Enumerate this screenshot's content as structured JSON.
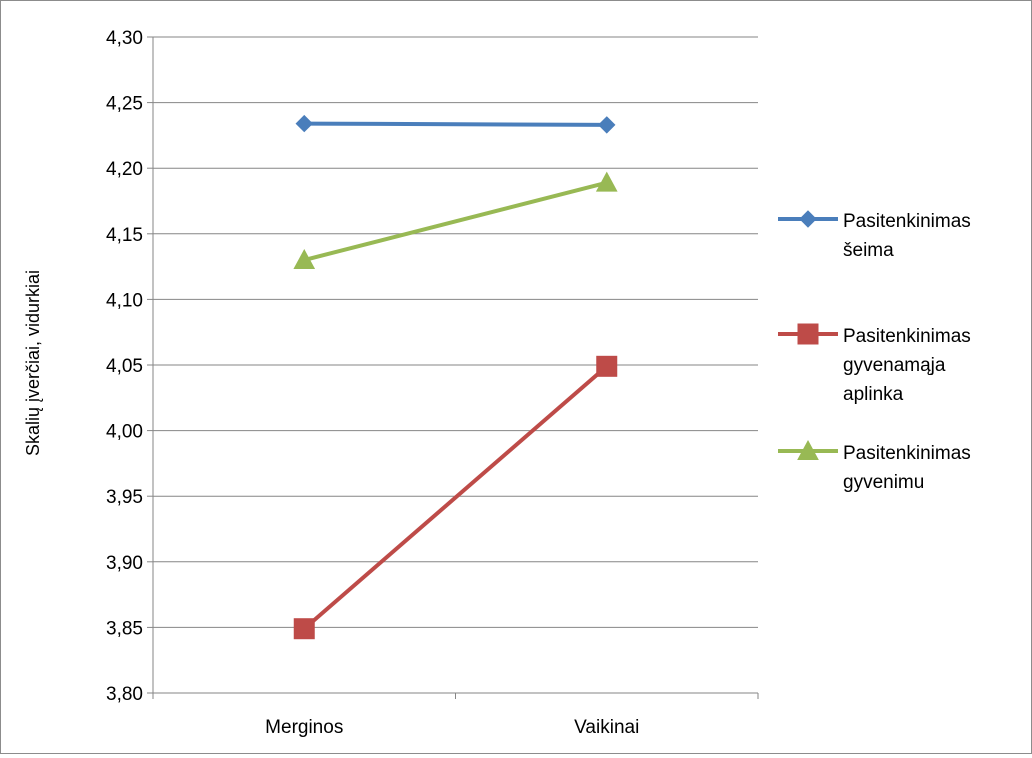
{
  "chart_data": {
    "type": "line",
    "categories": [
      "Merginos",
      "Vaikinai"
    ],
    "series": [
      {
        "name": "Pasitenkinimas šeima",
        "legend_lines": [
          "Pasitenkinimas",
          "šeima"
        ],
        "values": [
          4.234,
          4.233
        ],
        "color": "#4a7ebb",
        "marker": "diamond"
      },
      {
        "name": "Pasitenkinimas gyvenamąja aplinka",
        "legend_lines": [
          "Pasitenkinimas",
          "gyvenamąja",
          "aplinka"
        ],
        "values": [
          3.849,
          4.049
        ],
        "color": "#be4b48",
        "marker": "square"
      },
      {
        "name": "Pasitenkinimas gyvenimu",
        "legend_lines": [
          "Pasitenkinimas",
          "gyvenimu"
        ],
        "values": [
          4.13,
          4.189
        ],
        "color": "#98b954",
        "marker": "triangle"
      }
    ],
    "ylabel": "Skalių įverčiai, vidurkiai",
    "xlabel": "",
    "title": "",
    "ylim": [
      3.8,
      4.3
    ],
    "yticks": [
      "3,80",
      "3,85",
      "3,90",
      "3,95",
      "4,00",
      "4,05",
      "4,10",
      "4,15",
      "4,20",
      "4,25",
      "4,30"
    ],
    "grid": true,
    "legend_position": "right"
  }
}
